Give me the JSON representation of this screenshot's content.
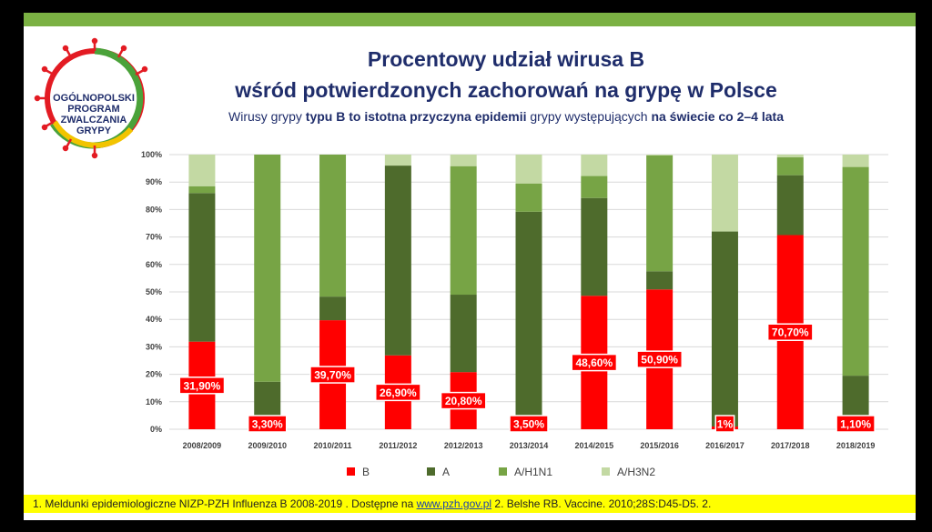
{
  "slide": {
    "title_line1": "Procentowy udział wirusa B",
    "title_line2": "wśród potwierdzonych zachorowań na grypę w Polsce",
    "subtitle_parts": [
      {
        "text": "Wirusy grypy ",
        "bold": false
      },
      {
        "text": "typu B to istotna przyczyna epidemii",
        "bold": true
      },
      {
        "text": " grypy występujących ",
        "bold": false
      },
      {
        "text": "na świecie co 2–4 lata",
        "bold": true
      }
    ],
    "logo_lines": [
      "OGÓLNOPOLSKI",
      "PROGRAM",
      "ZWALCZANIA",
      "GRYPY"
    ],
    "footer_before": "1. Meldunki epidemiologiczne NIZP-PZH Influenza B 2008-2019 . Dostępne na ",
    "footer_link": "www.pzh.gov.pl",
    "footer_after": " 2. Belshe RB. Vaccine. 2010;28S:D45-D5. 2."
  },
  "colors": {
    "B": "#ff0000",
    "A": "#4e6b2c",
    "A/H1N1": "#77a445",
    "A/H3N2": "#c3d9a3",
    "topbar": "#7bb143",
    "footer": "#ffff00",
    "title": "#1f2d6b"
  },
  "chart_data": {
    "type": "bar",
    "stacked": true,
    "categories": [
      "2008/2009",
      "2009/2010",
      "2010/2011",
      "2011/2012",
      "2012/2013",
      "2013/2014",
      "2014/2015",
      "2015/2016",
      "2016/2017",
      "2017/2018",
      "2018/2019"
    ],
    "series": [
      {
        "name": "B",
        "values": [
          31.9,
          3.3,
          39.7,
          26.9,
          20.8,
          3.5,
          48.6,
          50.9,
          1.0,
          70.7,
          1.1
        ]
      },
      {
        "name": "A",
        "values": [
          54.1,
          14.0,
          8.6,
          69.1,
          28.2,
          75.7,
          35.6,
          6.6,
          71.0,
          21.8,
          18.4
        ]
      },
      {
        "name": "A/H1N1",
        "values": [
          2.5,
          82.7,
          51.7,
          0,
          46.8,
          10.3,
          8.0,
          42.2,
          0,
          6.5,
          76.0
        ]
      },
      {
        "name": "A/H3N2",
        "values": [
          11.5,
          0,
          0,
          4.0,
          4.2,
          10.5,
          7.8,
          0.3,
          28.0,
          1.0,
          4.5
        ]
      }
    ],
    "data_labels": [
      "31,90%",
      "3,30%",
      "39,70%",
      "26,90%",
      "20,80%",
      "3,50%",
      "48,60%",
      "50,90%",
      "1%",
      "70,70%",
      "1,10%"
    ],
    "yticks": [
      "0%",
      "10%",
      "20%",
      "30%",
      "40%",
      "50%",
      "60%",
      "70%",
      "80%",
      "90%",
      "100%"
    ],
    "ylim": [
      0,
      100
    ],
    "grid": true,
    "legend": "bottom"
  }
}
